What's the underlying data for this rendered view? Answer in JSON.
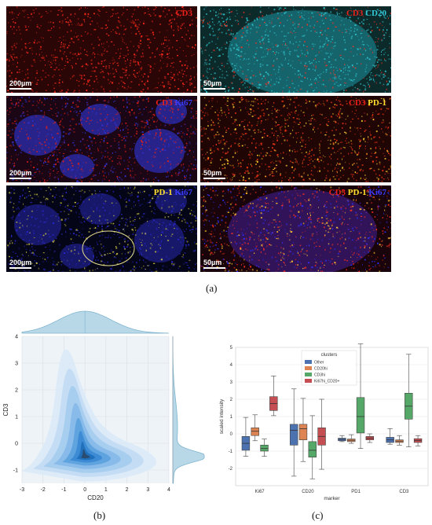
{
  "panel_a": {
    "caption": "(a)",
    "tiles": [
      {
        "id": "cd3",
        "parts": [
          {
            "text": "CD3",
            "color": "#e8201a"
          }
        ],
        "scale": "200µm",
        "bg": "#2a0606"
      },
      {
        "id": "cd3-cd20",
        "parts": [
          {
            "text": "CD3",
            "color": "#e8201a"
          },
          {
            "text": " CD20",
            "color": "#33c8d8"
          }
        ],
        "scale": "50µm",
        "bg": "#0d2a2a"
      },
      {
        "id": "cd3-ki67",
        "parts": [
          {
            "text": "CD3",
            "color": "#e8201a"
          },
          {
            "text": " Ki67",
            "color": "#3b3bff"
          }
        ],
        "scale": "200µm",
        "bg": "#1a0614"
      },
      {
        "id": "cd3-pd1",
        "parts": [
          {
            "text": "CD3",
            "color": "#e8201a"
          },
          {
            "text": " PD-1",
            "color": "#ffe030"
          }
        ],
        "scale": "50µm",
        "bg": "#1f0503"
      },
      {
        "id": "pd1-ki67",
        "parts": [
          {
            "text": "PD-1",
            "color": "#ffe030"
          },
          {
            "text": " Ki67",
            "color": "#3b3bff"
          }
        ],
        "scale": "200µm",
        "bg": "#050518"
      },
      {
        "id": "cd3-pd1-ki67",
        "parts": [
          {
            "text": "CD3",
            "color": "#e8201a"
          },
          {
            "text": " PD-1",
            "color": "#ffe030"
          },
          {
            "text": " Ki67",
            "color": "#3b3bff"
          }
        ],
        "scale": "50µm",
        "bg": "#18040a"
      }
    ]
  },
  "panel_b": {
    "caption": "(b)"
  },
  "panel_c": {
    "caption": "(c)"
  },
  "chart_data": [
    {
      "type": "density-joint",
      "xlabel": "CD20",
      "ylabel": "CD3",
      "xlim": [
        -3,
        4
      ],
      "ylim": [
        -1.5,
        4
      ],
      "x_ticks": [
        -3,
        -2,
        -1,
        0,
        1,
        2,
        3,
        4
      ],
      "y_ticks": [
        -1,
        0,
        1,
        2,
        3,
        4
      ],
      "peak": {
        "x": 0.0,
        "y": -0.5
      },
      "color": "#2e86c1"
    },
    {
      "type": "boxplot",
      "xlabel": "marker",
      "ylabel": "scaled intensity",
      "ylim": [
        -3,
        5
      ],
      "y_ticks": [
        -2,
        -1,
        0,
        1,
        2,
        3,
        4,
        5
      ],
      "categories": [
        "Ki67",
        "CD20",
        "PD1",
        "CD3"
      ],
      "legend_title": "clusters",
      "legend_position": "top",
      "series": [
        {
          "name": "Other",
          "color": "#4c72b0",
          "boxes": [
            {
              "min": -1.3,
              "q1": -0.95,
              "median": -0.55,
              "q3": -0.15,
              "max": 0.95
            },
            {
              "min": -2.45,
              "q1": -0.65,
              "median": 0.2,
              "q3": 0.55,
              "max": 2.6
            },
            {
              "min": -0.45,
              "q1": -0.4,
              "median": -0.32,
              "q3": -0.25,
              "max": -0.1
            },
            {
              "min": -0.6,
              "q1": -0.5,
              "median": -0.35,
              "q3": -0.2,
              "max": 0.3
            }
          ]
        },
        {
          "name": "CD20hi",
          "color": "#dd8452",
          "boxes": [
            {
              "min": -0.4,
              "q1": -0.1,
              "median": 0.15,
              "q3": 0.35,
              "max": 1.1
            },
            {
              "min": -1.6,
              "q1": -0.35,
              "median": 0.3,
              "q3": 0.55,
              "max": 2.05
            },
            {
              "min": -0.55,
              "q1": -0.45,
              "median": -0.37,
              "q3": -0.3,
              "max": -0.05
            },
            {
              "min": -0.65,
              "q1": -0.5,
              "median": -0.42,
              "q3": -0.35,
              "max": -0.1
            }
          ]
        },
        {
          "name": "CD3hi",
          "color": "#55a868",
          "boxes": [
            {
              "min": -1.3,
              "q1": -1.0,
              "median": -0.85,
              "q3": -0.65,
              "max": -0.3
            },
            {
              "min": -2.6,
              "q1": -1.35,
              "median": -0.95,
              "q3": -0.45,
              "max": 1.05
            },
            {
              "min": -0.85,
              "q1": 0.05,
              "median": 1.0,
              "q3": 2.1,
              "max": 5.2
            },
            {
              "min": -0.75,
              "q1": 0.85,
              "median": 1.6,
              "q3": 2.35,
              "max": 4.6
            }
          ]
        },
        {
          "name": "Ki67hi_CD20+",
          "color": "#c44e52",
          "boxes": [
            {
              "min": 1.05,
              "q1": 1.35,
              "median": 1.75,
              "q3": 2.15,
              "max": 3.35
            },
            {
              "min": -2.05,
              "q1": -0.65,
              "median": -0.15,
              "q3": 0.35,
              "max": 2.0
            },
            {
              "min": -0.5,
              "q1": -0.35,
              "median": -0.25,
              "q3": -0.15,
              "max": 0.0
            },
            {
              "min": -0.7,
              "q1": -0.5,
              "median": -0.38,
              "q3": -0.28,
              "max": -0.1
            }
          ]
        }
      ]
    }
  ]
}
